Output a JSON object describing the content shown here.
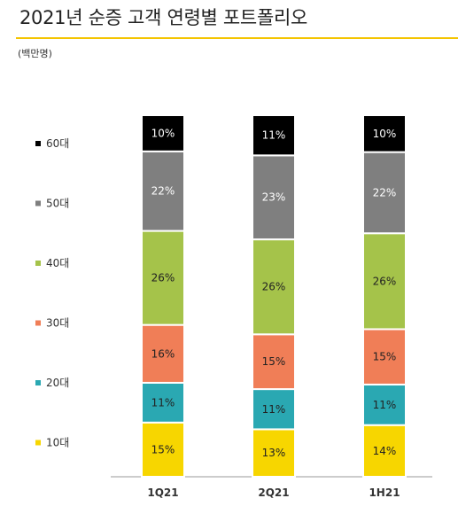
{
  "title": "2021년 순증 고객 연령별 포트폴리오",
  "unit_label": "(백만명)",
  "chart_data": {
    "type": "bar",
    "stacked": true,
    "title": "2021년 순증 고객 연령별 포트폴리오",
    "ylabel": "(백만명)",
    "categories": [
      "1Q21",
      "2Q21",
      "1H21"
    ],
    "series": [
      {
        "name": "10대",
        "color": "#f7d600",
        "values": [
          15,
          13,
          14
        ],
        "labels": [
          "15%",
          "13%",
          "14%"
        ]
      },
      {
        "name": "20대",
        "color": "#2aa8b2",
        "values": [
          11,
          11,
          11
        ],
        "labels": [
          "11%",
          "11%",
          "11%"
        ]
      },
      {
        "name": "30대",
        "color": "#f07e57",
        "values": [
          16,
          15,
          15
        ],
        "labels": [
          "16%",
          "15%",
          "15%"
        ]
      },
      {
        "name": "40대",
        "color": "#a5c34a",
        "values": [
          26,
          26,
          26
        ],
        "labels": [
          "26%",
          "26%",
          "26%"
        ]
      },
      {
        "name": "50대",
        "color": "#7f7f7f",
        "values": [
          22,
          23,
          22
        ],
        "labels": [
          "22%",
          "23%",
          "22%"
        ]
      },
      {
        "name": "60대",
        "color": "#000000",
        "values": [
          10,
          11,
          10
        ],
        "labels": [
          "10%",
          "11%",
          "10%"
        ]
      }
    ],
    "legend_position": "left",
    "grid": false
  }
}
